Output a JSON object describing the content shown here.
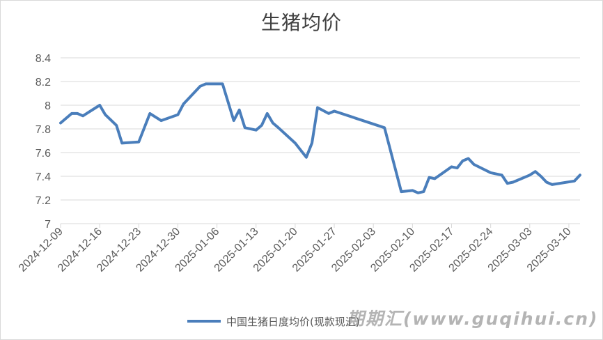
{
  "chart_data": {
    "type": "line",
    "title": "生猪均价",
    "xlabel": "",
    "ylabel": "",
    "ylim": [
      7,
      8.4
    ],
    "y_ticks": [
      "7",
      "7.2",
      "7.4",
      "7.6",
      "7.8",
      "8",
      "8.2",
      "8.4"
    ],
    "x_ticks": [
      "2024-12-09",
      "2024-12-16",
      "2024-12-23",
      "2024-12-30",
      "2025-01-06",
      "2025-01-13",
      "2025-01-20",
      "2025-01-27",
      "2025-02-03",
      "2025-02-10",
      "2025-02-17",
      "2025-02-24",
      "2025-03-03",
      "2025-03-10"
    ],
    "x_range": [
      "2024-12-09",
      "2025-03-12"
    ],
    "grid": "horizontal",
    "legend_position": "bottom",
    "series": [
      {
        "name": "中国生猪日度均价(现款现汇)",
        "color": "#4a7ebb",
        "points": [
          [
            "2024-12-09",
            7.85
          ],
          [
            "2024-12-11",
            7.93
          ],
          [
            "2024-12-12",
            7.93
          ],
          [
            "2024-12-13",
            7.91
          ],
          [
            "2024-12-16",
            8.0
          ],
          [
            "2024-12-17",
            7.92
          ],
          [
            "2024-12-19",
            7.83
          ],
          [
            "2024-12-20",
            7.68
          ],
          [
            "2024-12-23",
            7.69
          ],
          [
            "2024-12-25",
            7.93
          ],
          [
            "2024-12-27",
            7.87
          ],
          [
            "2024-12-30",
            7.92
          ],
          [
            "2024-12-31",
            8.01
          ],
          [
            "2025-01-03",
            8.16
          ],
          [
            "2025-01-04",
            8.18
          ],
          [
            "2025-01-06",
            8.18
          ],
          [
            "2025-01-07",
            8.18
          ],
          [
            "2025-01-09",
            7.87
          ],
          [
            "2025-01-10",
            7.96
          ],
          [
            "2025-01-11",
            7.81
          ],
          [
            "2025-01-13",
            7.79
          ],
          [
            "2025-01-14",
            7.83
          ],
          [
            "2025-01-15",
            7.93
          ],
          [
            "2025-01-16",
            7.85
          ],
          [
            "2025-01-17",
            7.81
          ],
          [
            "2025-01-20",
            7.68
          ],
          [
            "2025-01-22",
            7.56
          ],
          [
            "2025-01-23",
            7.68
          ],
          [
            "2025-01-24",
            7.98
          ],
          [
            "2025-01-26",
            7.93
          ],
          [
            "2025-01-27",
            7.95
          ],
          [
            "2025-02-05",
            7.81
          ],
          [
            "2025-02-08",
            7.27
          ],
          [
            "2025-02-10",
            7.28
          ],
          [
            "2025-02-11",
            7.26
          ],
          [
            "2025-02-12",
            7.27
          ],
          [
            "2025-02-13",
            7.39
          ],
          [
            "2025-02-14",
            7.38
          ],
          [
            "2025-02-17",
            7.48
          ],
          [
            "2025-02-18",
            7.47
          ],
          [
            "2025-02-19",
            7.53
          ],
          [
            "2025-02-20",
            7.55
          ],
          [
            "2025-02-21",
            7.5
          ],
          [
            "2025-02-24",
            7.43
          ],
          [
            "2025-02-26",
            7.41
          ],
          [
            "2025-02-27",
            7.34
          ],
          [
            "2025-02-28",
            7.35
          ],
          [
            "2025-03-03",
            7.41
          ],
          [
            "2025-03-04",
            7.44
          ],
          [
            "2025-03-05",
            7.4
          ],
          [
            "2025-03-06",
            7.35
          ],
          [
            "2025-03-07",
            7.33
          ],
          [
            "2025-03-11",
            7.36
          ],
          [
            "2025-03-12",
            7.41
          ]
        ]
      }
    ]
  },
  "watermark": "期期汇(www.guqihui.cn)"
}
